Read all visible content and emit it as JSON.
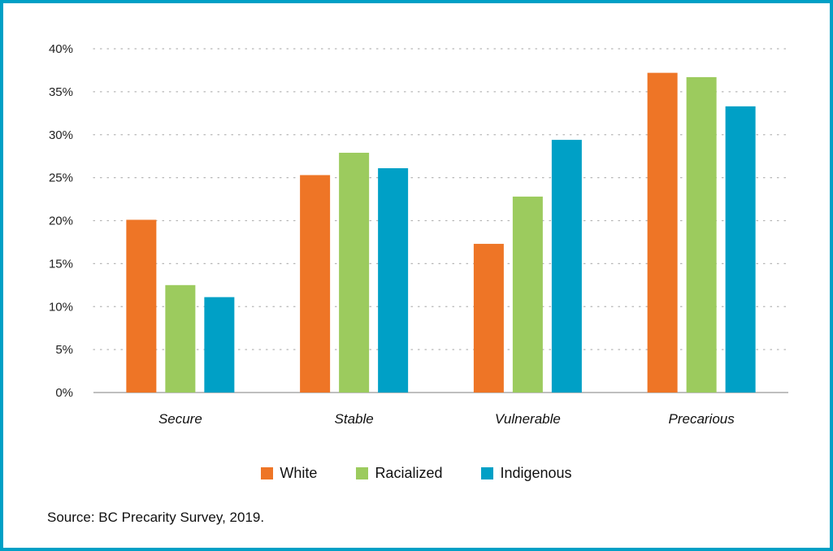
{
  "chart_data": {
    "type": "bar",
    "categories": [
      "Secure",
      "Stable",
      "Vulnerable",
      "Precarious"
    ],
    "series": [
      {
        "name": "White",
        "values": [
          20.1,
          25.3,
          17.3,
          37.2
        ]
      },
      {
        "name": "Racialized",
        "values": [
          12.5,
          27.9,
          22.8,
          36.7
        ]
      },
      {
        "name": "Indigenous",
        "values": [
          11.1,
          26.1,
          29.4,
          33.3
        ]
      }
    ],
    "ylim": [
      0,
      40
    ],
    "yticks": [
      "0%",
      "5%",
      "10%",
      "15%",
      "20%",
      "25%",
      "30%",
      "35%",
      "40%"
    ],
    "grid": true,
    "legend_position": "bottom",
    "colors": {
      "White": "#ee7526",
      "Racialized": "#9ccb5e",
      "Indigenous": "#00a0c6"
    },
    "source": "Source: BC Precarity Survey, 2019."
  }
}
